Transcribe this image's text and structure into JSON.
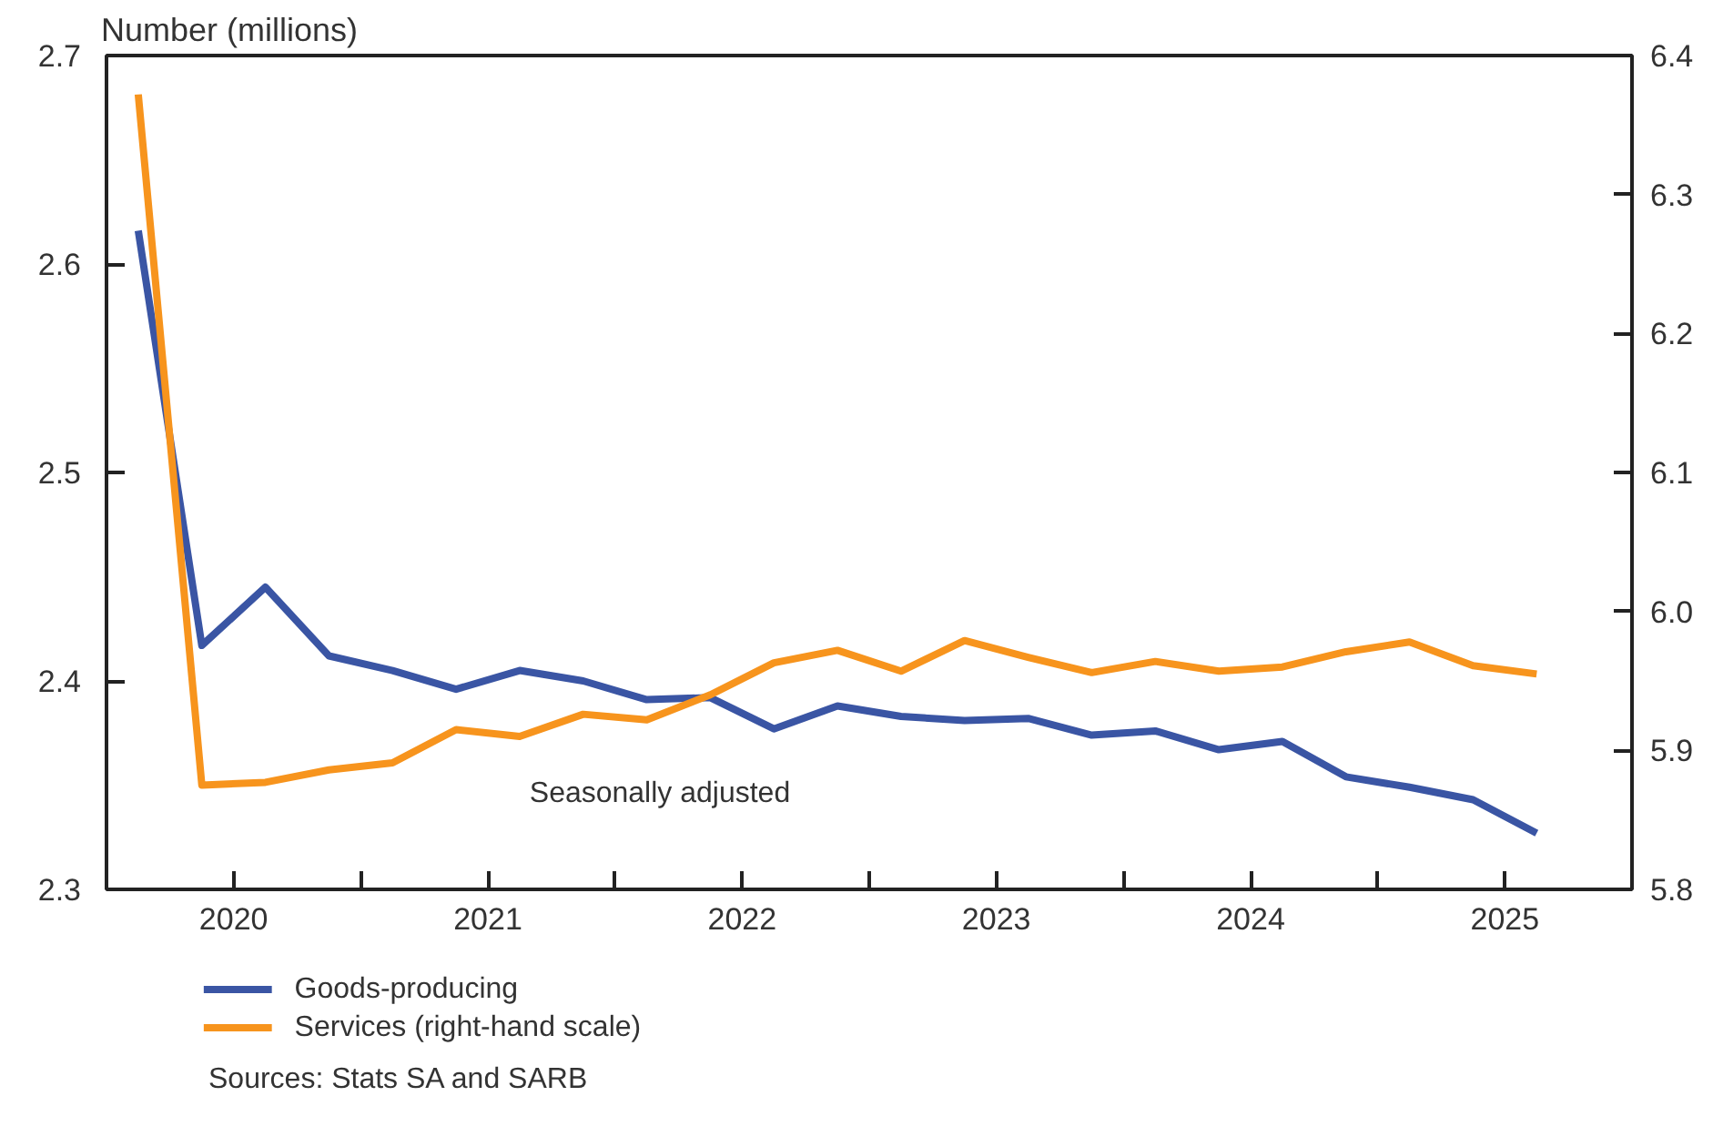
{
  "chart_data": {
    "type": "line",
    "ylabel": "Number (millions)",
    "x": [
      2020.125,
      2020.375,
      2020.625,
      2020.875,
      2021.125,
      2021.375,
      2021.625,
      2021.875,
      2022.125,
      2022.375,
      2022.625,
      2022.875,
      2023.125,
      2023.375,
      2023.625,
      2023.875,
      2024.125,
      2024.375,
      2024.625,
      2024.875,
      2025.125,
      2025.375,
      2025.625
    ],
    "series": [
      {
        "name": "Goods-producing",
        "color": "#3a55a4",
        "values": [
          2.616,
          2.417,
          2.445,
          2.412,
          2.405,
          2.396,
          2.405,
          2.4,
          2.391,
          2.392,
          2.377,
          2.388,
          2.383,
          2.381,
          2.382,
          2.374,
          2.376,
          2.367,
          2.371,
          2.354,
          2.349,
          2.343,
          2.327
        ]
      },
      {
        "name": "Services (right-hand scale)",
        "color": "#f7941d",
        "axis": "y2",
        "values": [
          6.372,
          5.875,
          5.877,
          5.886,
          5.891,
          5.915,
          5.91,
          5.926,
          5.922,
          5.94,
          5.963,
          5.972,
          5.957,
          5.979,
          5.967,
          5.956,
          5.964,
          5.957,
          5.96,
          5.971,
          5.978,
          5.961,
          5.955
        ]
      }
    ],
    "xlim": [
      2020,
      2026
    ],
    "xticks": [
      {
        "value": 2020.5,
        "label": "2020"
      },
      {
        "value": 2021,
        "label": null
      },
      {
        "value": 2021.5,
        "label": "2021"
      },
      {
        "value": 2022,
        "label": null
      },
      {
        "value": 2022.5,
        "label": "2022"
      },
      {
        "value": 2023,
        "label": null
      },
      {
        "value": 2023.5,
        "label": "2023"
      },
      {
        "value": 2024,
        "label": null
      },
      {
        "value": 2024.5,
        "label": "2024"
      },
      {
        "value": 2025,
        "label": null
      },
      {
        "value": 2025.5,
        "label": "2025"
      }
    ],
    "ylim": [
      2.3,
      2.7
    ],
    "yticks": [
      2.3,
      2.4,
      2.5,
      2.6,
      2.7
    ],
    "y2lim": [
      5.8,
      6.4
    ],
    "y2ticks": [
      5.8,
      5.9,
      {
        "value": 6.0,
        "label": "6.0"
      },
      6.1,
      6.2,
      6.3,
      6.4
    ],
    "grid": false,
    "legend": "bottom",
    "line_style": "solid",
    "annotations": [
      "Seasonally adjusted",
      "Sources: Stats SA and SARB"
    ]
  }
}
